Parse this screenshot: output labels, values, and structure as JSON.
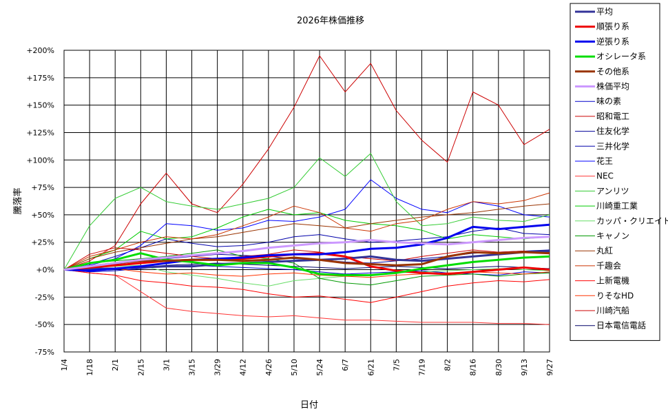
{
  "chart_data": {
    "type": "line",
    "title": "2026年株価推移",
    "xlabel": "日付",
    "ylabel": "騰落率",
    "x": [
      "1/4",
      "1/18",
      "2/1",
      "2/15",
      "3/1",
      "3/15",
      "3/29",
      "4/12",
      "4/26",
      "5/10",
      "5/24",
      "6/7",
      "6/21",
      "7/5",
      "7/19",
      "8/2",
      "8/16",
      "8/30",
      "9/13",
      "9/27"
    ],
    "y_ticks": [
      "+200%",
      "+175%",
      "+150%",
      "+125%",
      "+100%",
      "+75%",
      "+50%",
      "+25%",
      "+0%",
      "-25%",
      "-50%",
      "-75%"
    ],
    "ylim": [
      -75,
      200
    ],
    "grid": true,
    "legend_position": "right",
    "series": [
      {
        "name": "平均",
        "color": "#333399",
        "width": 3,
        "values": [
          0,
          1,
          1,
          2,
          3,
          3,
          5,
          6,
          7,
          8,
          9,
          10,
          12,
          9,
          8,
          10,
          12,
          14,
          16,
          17
        ]
      },
      {
        "name": "順張り系",
        "color": "#ee0000",
        "width": 3,
        "values": [
          0,
          2,
          4,
          6,
          8,
          9,
          9,
          10,
          12,
          14,
          15,
          12,
          3,
          -1,
          -3,
          -4,
          -2,
          0,
          2,
          0
        ]
      },
      {
        "name": "逆張り系",
        "color": "#0000ee",
        "width": 3,
        "values": [
          0,
          -1,
          1,
          3,
          6,
          9,
          10,
          11,
          13,
          14,
          14,
          16,
          19,
          20,
          23,
          29,
          39,
          37,
          39,
          41
        ]
      },
      {
        "name": "オシレータ系",
        "color": "#00dd00",
        "width": 3,
        "values": [
          0,
          6,
          9,
          15,
          9,
          7,
          4,
          6,
          6,
          2,
          -4,
          -5,
          -5,
          -3,
          1,
          4,
          7,
          9,
          11,
          12
        ]
      },
      {
        "name": "その他系",
        "color": "#993300",
        "width": 3,
        "values": [
          0,
          3,
          6,
          8,
          8,
          9,
          9,
          8,
          9,
          11,
          9,
          6,
          5,
          4,
          5,
          12,
          16,
          15,
          16,
          15
        ]
      },
      {
        "name": "株価平均",
        "color": "#cc99ff",
        "width": 3,
        "values": [
          0,
          3,
          6,
          9,
          11,
          13,
          15,
          17,
          20,
          22,
          24,
          25,
          27,
          25,
          24,
          23,
          25,
          27,
          29,
          30
        ]
      },
      {
        "name": "味の素",
        "color": "#0000cc",
        "width": 1,
        "values": [
          0,
          -2,
          -1,
          1,
          3,
          4,
          3,
          2,
          1,
          0,
          -2,
          -4,
          -3,
          -2,
          -1,
          -3,
          -4,
          -5,
          -2,
          -3
        ]
      },
      {
        "name": "昭和電工",
        "color": "#cc0000",
        "width": 1,
        "values": [
          0,
          8,
          22,
          60,
          88,
          60,
          52,
          78,
          110,
          148,
          195,
          162,
          188,
          145,
          118,
          98,
          162,
          150,
          114,
          128
        ]
      },
      {
        "name": "住友化学",
        "color": "#000099",
        "width": 1,
        "values": [
          0,
          3,
          5,
          8,
          10,
          12,
          14,
          13,
          12,
          10,
          9,
          7,
          6,
          8,
          10,
          12,
          15,
          16,
          17,
          18
        ]
      },
      {
        "name": "三井化学",
        "color": "#0000aa",
        "width": 1,
        "values": [
          0,
          5,
          12,
          20,
          28,
          24,
          21,
          22,
          25,
          30,
          32,
          28,
          25,
          26,
          28,
          30,
          35,
          38,
          33,
          32
        ]
      },
      {
        "name": "花王",
        "color": "#0000ff",
        "width": 1,
        "values": [
          0,
          4,
          10,
          22,
          42,
          40,
          36,
          38,
          45,
          44,
          48,
          55,
          82,
          65,
          55,
          52,
          62,
          58,
          50,
          48
        ]
      },
      {
        "name": "NEC",
        "color": "#ff3333",
        "width": 1,
        "values": [
          0,
          -3,
          -5,
          -20,
          -35,
          -38,
          -40,
          -42,
          -43,
          -42,
          -44,
          -46,
          -46,
          -47,
          -48,
          -48,
          -48,
          -49,
          -49,
          -50
        ]
      },
      {
        "name": "アンリツ",
        "color": "#33cc33",
        "width": 1,
        "values": [
          0,
          40,
          65,
          75,
          62,
          58,
          55,
          60,
          65,
          75,
          102,
          85,
          106,
          62,
          40,
          42,
          48,
          45,
          44,
          50
        ]
      },
      {
        "name": "川崎重工業",
        "color": "#00cc00",
        "width": 1,
        "values": [
          0,
          10,
          18,
          35,
          28,
          30,
          38,
          48,
          55,
          50,
          52,
          45,
          42,
          40,
          36,
          28,
          32,
          30,
          28,
          30
        ]
      },
      {
        "name": "カッパ・クリエイト",
        "color": "#66dd66",
        "width": 1,
        "values": [
          0,
          2,
          3,
          4,
          -2,
          -5,
          -8,
          -12,
          -15,
          -10,
          -8,
          -6,
          -5,
          -3,
          -2,
          -1,
          0,
          1,
          0,
          -1
        ]
      },
      {
        "name": "キャノン",
        "color": "#009900",
        "width": 1,
        "values": [
          0,
          6,
          8,
          10,
          12,
          15,
          18,
          12,
          10,
          6,
          -8,
          -12,
          -14,
          -10,
          -6,
          -5,
          -4,
          -6,
          -4,
          -3
        ]
      },
      {
        "name": "丸紅",
        "color": "#993300",
        "width": 1,
        "values": [
          0,
          10,
          16,
          20,
          24,
          28,
          30,
          34,
          38,
          42,
          40,
          38,
          42,
          45,
          48,
          50,
          52,
          55,
          58,
          60
        ]
      },
      {
        "name": "千趣会",
        "color": "#cc3300",
        "width": 1,
        "values": [
          0,
          12,
          18,
          25,
          30,
          28,
          32,
          40,
          48,
          58,
          52,
          38,
          35,
          42,
          45,
          55,
          62,
          60,
          63,
          70
        ]
      },
      {
        "name": "上新電機",
        "color": "#ff0000",
        "width": 1,
        "values": [
          0,
          -3,
          -5,
          -10,
          -12,
          -15,
          -16,
          -18,
          -22,
          -25,
          -24,
          -27,
          -30,
          -25,
          -20,
          -15,
          -12,
          -10,
          -11,
          -9
        ]
      },
      {
        "name": "りそなHD",
        "color": "#ff3300",
        "width": 1,
        "values": [
          0,
          2,
          1,
          -2,
          -4,
          -3,
          -5,
          -6,
          -4,
          -3,
          -5,
          -6,
          -7,
          -5,
          -4,
          -3,
          -2,
          -3,
          -4,
          -2
        ]
      },
      {
        "name": "川崎汽船",
        "color": "#cc0000",
        "width": 1,
        "values": [
          0,
          14,
          20,
          18,
          15,
          12,
          10,
          12,
          14,
          18,
          16,
          12,
          10,
          8,
          12,
          15,
          18,
          16,
          17,
          16
        ]
      },
      {
        "name": "日本電信電話",
        "color": "#000066",
        "width": 1,
        "values": [
          0,
          -1,
          0,
          2,
          4,
          5,
          6,
          5,
          4,
          3,
          2,
          1,
          2,
          3,
          2,
          1,
          2,
          3,
          2,
          1
        ]
      }
    ]
  }
}
